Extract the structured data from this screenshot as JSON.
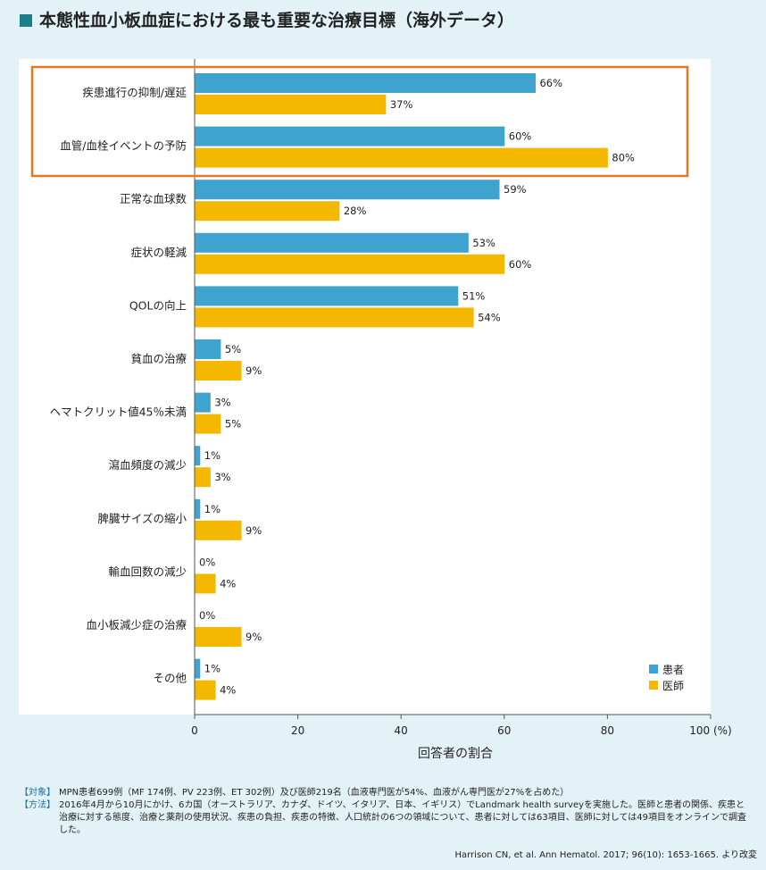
{
  "title": "本態性血小板血症における最も重要な治療目標（海外データ）",
  "chart_data": {
    "type": "bar",
    "orientation": "horizontal",
    "categories": [
      "疾患進行の抑制/遅延",
      "血管/血栓イベントの予防",
      "正常な血球数",
      "症状の軽減",
      "QOLの向上",
      "貧血の治療",
      "ヘマトクリット値45％未満",
      "瀉血頻度の減少",
      "脾臓サイズの縮小",
      "輸血回数の減少",
      "血小板減少症の治療",
      "その他"
    ],
    "series": [
      {
        "name": "患者",
        "color": "#3fa3cf",
        "values": [
          66,
          60,
          59,
          53,
          51,
          5,
          3,
          1,
          1,
          0,
          0,
          1
        ]
      },
      {
        "name": "医師",
        "color": "#f5b800",
        "values": [
          37,
          80,
          28,
          60,
          54,
          9,
          5,
          3,
          9,
          4,
          9,
          4
        ]
      }
    ],
    "xlabel": "回答者の割合",
    "xlim": [
      0,
      100
    ],
    "xticks": [
      "0",
      "20",
      "40",
      "60",
      "80",
      "100 (%)"
    ],
    "value_suffix": "%",
    "legend_position": "bottom-right",
    "highlight_color": "#e87722"
  },
  "notes": [
    {
      "tag": "【対象】",
      "text": "MPN患者699例（MF 174例、PV 223例、ET 302例）及び医師219名（血液専門医が54%、血液がん専門医が27%を占めた）"
    },
    {
      "tag": "【方法】",
      "text": "2016年4月から10月にかけ、6カ国（オーストラリア、カナダ、ドイツ、イタリア、日本、イギリス）でLandmark health surveyを実施した。医師と患者の関係、疾患と治療に対する態度、治療と薬剤の使用状況、疾患の負担、疾患の特徴、人口統計の6つの領域について、患者に対しては63項目、医師に対しては49項目をオンラインで調査した。"
    }
  ],
  "citation": "Harrison CN, et al. Ann Hematol. 2017; 96(10): 1653-1665. より改変"
}
